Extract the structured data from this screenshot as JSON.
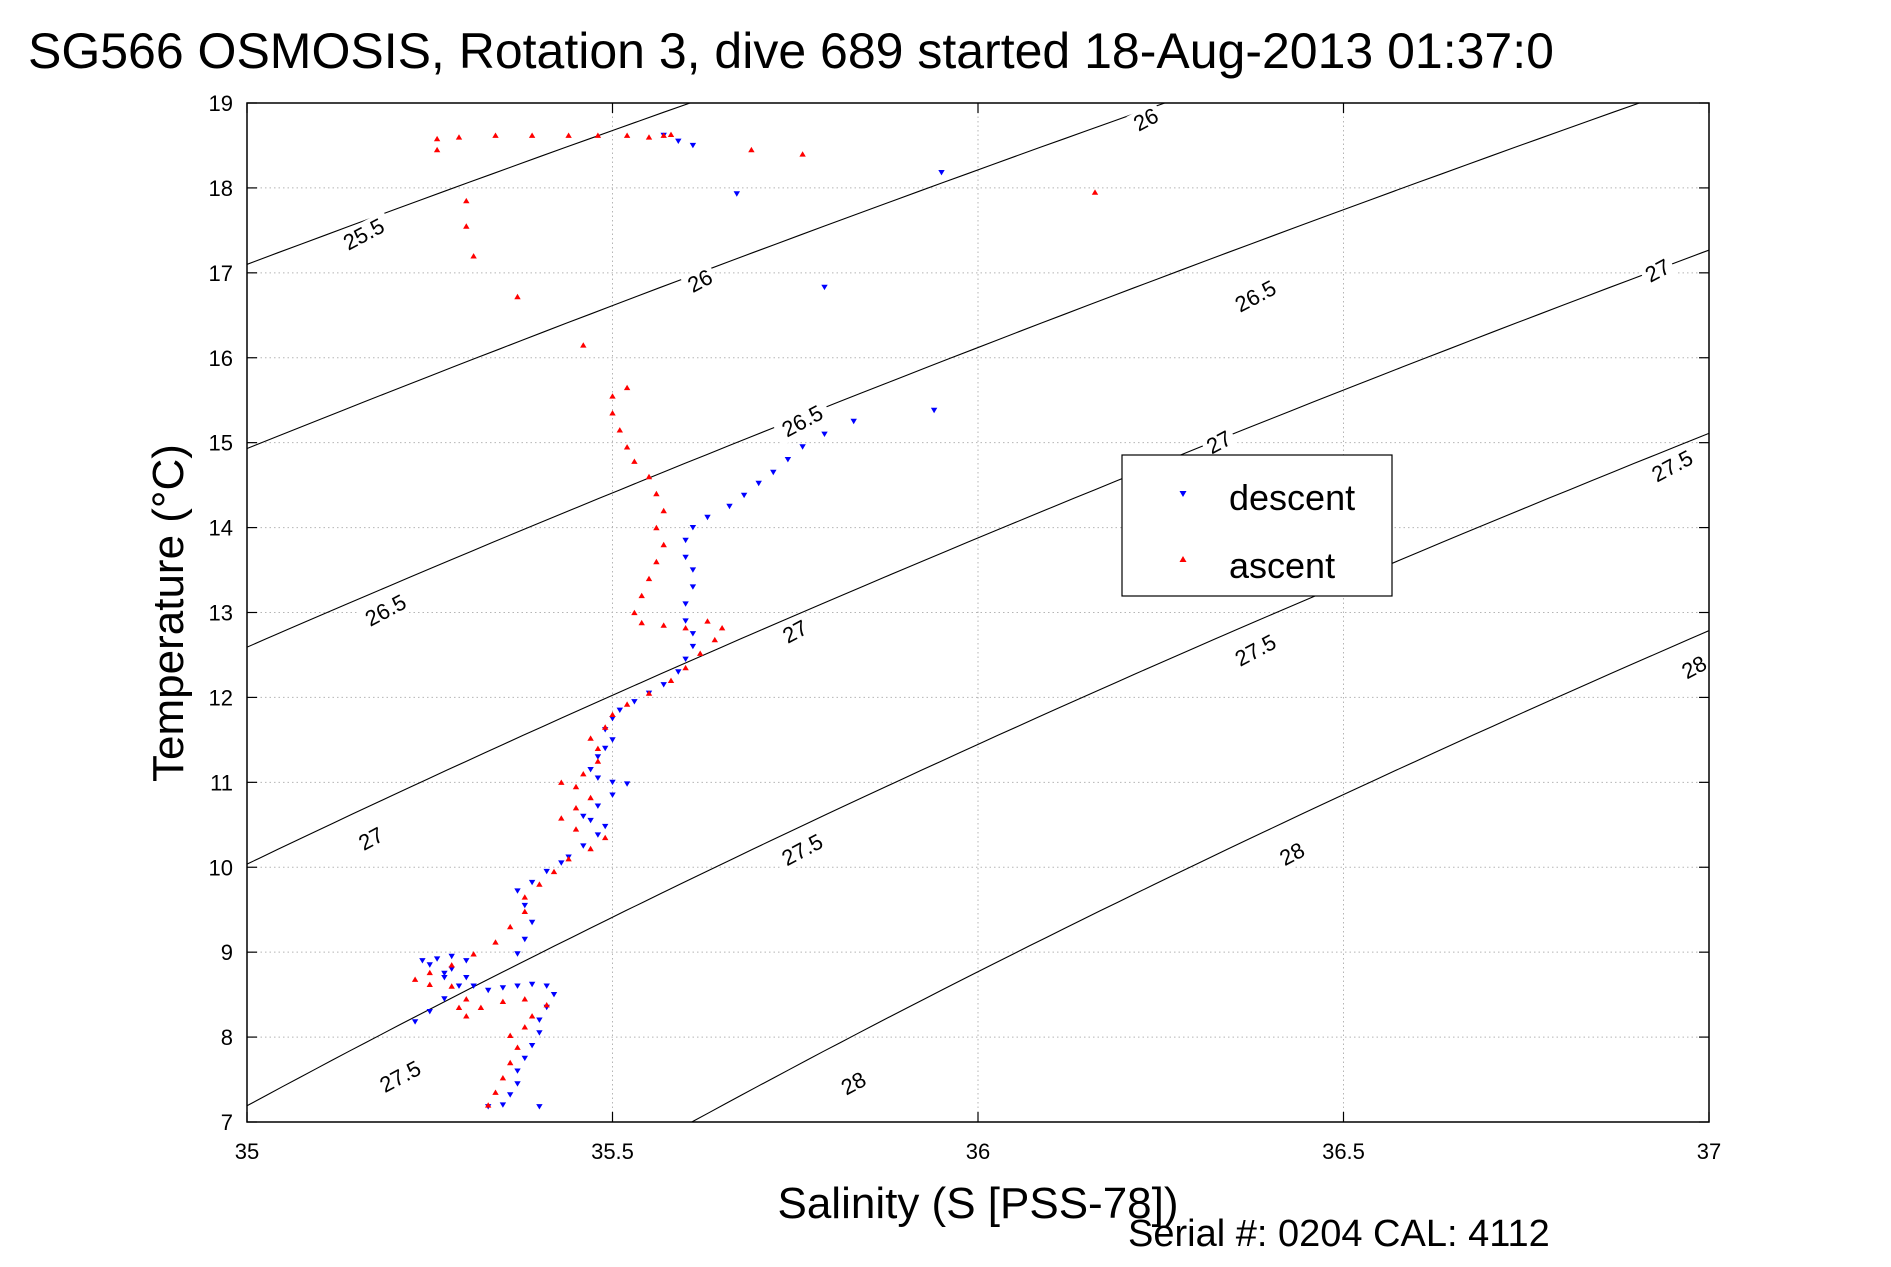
{
  "chart_data": {
    "type": "scatter",
    "title": "SG566 OSMOSIS, Rotation 3, dive 689 started 18-Aug-2013 01:37:0",
    "xlabel": "Salinity (S [PSS-78])",
    "ylabel": "Temperature (°C)",
    "footer": "Serial #: 0204  CAL: 4112",
    "xlim": [
      35,
      37
    ],
    "ylim": [
      7,
      19
    ],
    "xticks": [
      35,
      35.5,
      36,
      36.5,
      37
    ],
    "yticks": [
      7,
      8,
      9,
      10,
      11,
      12,
      13,
      14,
      15,
      16,
      17,
      18,
      19
    ],
    "grid": true,
    "legend_position": "right-middle",
    "series": [
      {
        "name": "descent",
        "color": "#0000ff",
        "marker": "triangle-down",
        "points": [
          [
            35.23,
            8.18
          ],
          [
            35.25,
            8.3
          ],
          [
            35.27,
            8.45
          ],
          [
            35.29,
            8.6
          ],
          [
            35.27,
            8.75
          ],
          [
            35.25,
            8.85
          ],
          [
            35.24,
            8.9
          ],
          [
            35.26,
            8.92
          ],
          [
            35.28,
            8.95
          ],
          [
            35.3,
            8.9
          ],
          [
            35.28,
            8.8
          ],
          [
            35.27,
            8.7
          ],
          [
            35.3,
            8.7
          ],
          [
            35.31,
            8.6
          ],
          [
            35.33,
            8.55
          ],
          [
            35.35,
            8.58
          ],
          [
            35.37,
            8.6
          ],
          [
            35.39,
            8.62
          ],
          [
            35.41,
            8.6
          ],
          [
            35.42,
            8.5
          ],
          [
            35.41,
            8.35
          ],
          [
            35.4,
            8.2
          ],
          [
            35.4,
            8.05
          ],
          [
            35.39,
            7.9
          ],
          [
            35.38,
            7.75
          ],
          [
            35.37,
            7.6
          ],
          [
            35.37,
            7.45
          ],
          [
            35.36,
            7.32
          ],
          [
            35.35,
            7.2
          ],
          [
            35.33,
            7.18
          ],
          [
            35.4,
            7.18
          ],
          [
            35.37,
            8.98
          ],
          [
            35.38,
            9.15
          ],
          [
            35.39,
            9.35
          ],
          [
            35.38,
            9.55
          ],
          [
            35.37,
            9.72
          ],
          [
            35.39,
            9.82
          ],
          [
            35.41,
            9.95
          ],
          [
            35.43,
            10.05
          ],
          [
            35.44,
            10.12
          ],
          [
            35.46,
            10.25
          ],
          [
            35.48,
            10.38
          ],
          [
            35.49,
            10.48
          ],
          [
            35.47,
            10.55
          ],
          [
            35.46,
            10.6
          ],
          [
            35.48,
            10.72
          ],
          [
            35.5,
            10.85
          ],
          [
            35.52,
            10.98
          ],
          [
            35.5,
            11.0
          ],
          [
            35.48,
            11.05
          ],
          [
            35.47,
            11.15
          ],
          [
            35.48,
            11.3
          ],
          [
            35.49,
            11.4
          ],
          [
            35.5,
            11.5
          ],
          [
            35.49,
            11.62
          ],
          [
            35.5,
            11.75
          ],
          [
            35.51,
            11.85
          ],
          [
            35.53,
            11.95
          ],
          [
            35.55,
            12.05
          ],
          [
            35.57,
            12.15
          ],
          [
            35.59,
            12.3
          ],
          [
            35.6,
            12.45
          ],
          [
            35.61,
            12.6
          ],
          [
            35.61,
            12.75
          ],
          [
            35.6,
            12.9
          ],
          [
            35.6,
            13.1
          ],
          [
            35.61,
            13.3
          ],
          [
            35.61,
            13.5
          ],
          [
            35.6,
            13.65
          ],
          [
            35.6,
            13.85
          ],
          [
            35.61,
            14.0
          ],
          [
            35.63,
            14.12
          ],
          [
            35.66,
            14.25
          ],
          [
            35.68,
            14.38
          ],
          [
            35.7,
            14.52
          ],
          [
            35.72,
            14.65
          ],
          [
            35.74,
            14.8
          ],
          [
            35.76,
            14.95
          ],
          [
            35.79,
            15.1
          ],
          [
            35.83,
            15.25
          ],
          [
            35.94,
            15.38
          ],
          [
            35.95,
            18.18
          ],
          [
            35.79,
            16.83
          ],
          [
            35.67,
            17.93
          ],
          [
            35.59,
            18.55
          ],
          [
            35.57,
            18.62
          ],
          [
            35.61,
            18.5
          ]
        ]
      },
      {
        "name": "ascent",
        "color": "#ff0000",
        "marker": "triangle-up",
        "points": [
          [
            35.33,
            7.2
          ],
          [
            35.34,
            7.35
          ],
          [
            35.35,
            7.52
          ],
          [
            35.36,
            7.7
          ],
          [
            35.37,
            7.88
          ],
          [
            35.36,
            8.02
          ],
          [
            35.38,
            8.12
          ],
          [
            35.39,
            8.25
          ],
          [
            35.41,
            8.38
          ],
          [
            35.38,
            8.45
          ],
          [
            35.35,
            8.42
          ],
          [
            35.32,
            8.35
          ],
          [
            35.3,
            8.25
          ],
          [
            35.29,
            8.35
          ],
          [
            35.3,
            8.45
          ],
          [
            35.28,
            8.6
          ],
          [
            35.25,
            8.62
          ],
          [
            35.23,
            8.68
          ],
          [
            35.25,
            8.76
          ],
          [
            35.28,
            8.85
          ],
          [
            35.31,
            8.98
          ],
          [
            35.34,
            9.12
          ],
          [
            35.36,
            9.3
          ],
          [
            35.38,
            9.48
          ],
          [
            35.38,
            9.65
          ],
          [
            35.4,
            9.8
          ],
          [
            35.42,
            9.95
          ],
          [
            35.44,
            10.1
          ],
          [
            35.47,
            10.22
          ],
          [
            35.49,
            10.35
          ],
          [
            35.45,
            10.45
          ],
          [
            35.43,
            10.58
          ],
          [
            35.45,
            10.7
          ],
          [
            35.47,
            10.82
          ],
          [
            35.45,
            10.95
          ],
          [
            35.43,
            11.0
          ],
          [
            35.46,
            11.1
          ],
          [
            35.48,
            11.25
          ],
          [
            35.48,
            11.4
          ],
          [
            35.47,
            11.52
          ],
          [
            35.49,
            11.65
          ],
          [
            35.5,
            11.8
          ],
          [
            35.52,
            11.92
          ],
          [
            35.55,
            12.05
          ],
          [
            35.58,
            12.2
          ],
          [
            35.6,
            12.35
          ],
          [
            35.62,
            12.52
          ],
          [
            35.64,
            12.68
          ],
          [
            35.65,
            12.82
          ],
          [
            35.63,
            12.9
          ],
          [
            35.6,
            12.82
          ],
          [
            35.57,
            12.85
          ],
          [
            35.54,
            12.88
          ],
          [
            35.53,
            13.0
          ],
          [
            35.54,
            13.2
          ],
          [
            35.55,
            13.4
          ],
          [
            35.56,
            13.6
          ],
          [
            35.57,
            13.8
          ],
          [
            35.56,
            14.0
          ],
          [
            35.57,
            14.2
          ],
          [
            35.56,
            14.4
          ],
          [
            35.55,
            14.6
          ],
          [
            35.53,
            14.78
          ],
          [
            35.52,
            14.95
          ],
          [
            35.51,
            15.15
          ],
          [
            35.5,
            15.35
          ],
          [
            35.5,
            15.55
          ],
          [
            35.52,
            15.65
          ],
          [
            35.46,
            16.15
          ],
          [
            35.37,
            16.72
          ],
          [
            35.31,
            17.2
          ],
          [
            35.3,
            17.55
          ],
          [
            35.3,
            17.85
          ],
          [
            35.26,
            18.45
          ],
          [
            35.26,
            18.58
          ],
          [
            35.29,
            18.6
          ],
          [
            35.34,
            18.62
          ],
          [
            35.39,
            18.62
          ],
          [
            35.44,
            18.62
          ],
          [
            35.48,
            18.62
          ],
          [
            35.52,
            18.62
          ],
          [
            35.55,
            18.6
          ],
          [
            35.57,
            18.62
          ],
          [
            35.58,
            18.63
          ],
          [
            35.69,
            18.45
          ],
          [
            35.76,
            18.4
          ],
          [
            36.16,
            17.95
          ]
        ]
      }
    ],
    "contours": [
      {
        "label": "25.5",
        "sigma": 25.5,
        "label_at": [
          [
            35.16,
            17.45
          ]
        ]
      },
      {
        "label": "26",
        "sigma": 26.0,
        "label_at": [
          [
            35.62,
            16.9
          ],
          [
            36.23,
            18.8
          ]
        ]
      },
      {
        "label": "26.5",
        "sigma": 26.5,
        "label_at": [
          [
            35.19,
            13.02
          ],
          [
            35.76,
            15.25
          ],
          [
            36.38,
            16.72
          ]
        ]
      },
      {
        "label": "27",
        "sigma": 27.0,
        "label_at": [
          [
            35.17,
            10.33
          ],
          [
            35.75,
            12.77
          ],
          [
            36.33,
            15.0
          ],
          [
            36.93,
            17.02
          ]
        ]
      },
      {
        "label": "27.5",
        "sigma": 27.5,
        "label_at": [
          [
            35.21,
            7.53
          ],
          [
            35.76,
            10.2
          ],
          [
            36.38,
            12.55
          ],
          [
            36.95,
            14.72
          ]
        ]
      },
      {
        "label": "28",
        "sigma": 28.0,
        "label_at": [
          [
            35.83,
            7.45
          ],
          [
            36.43,
            10.15
          ],
          [
            36.98,
            12.35
          ]
        ]
      }
    ]
  }
}
